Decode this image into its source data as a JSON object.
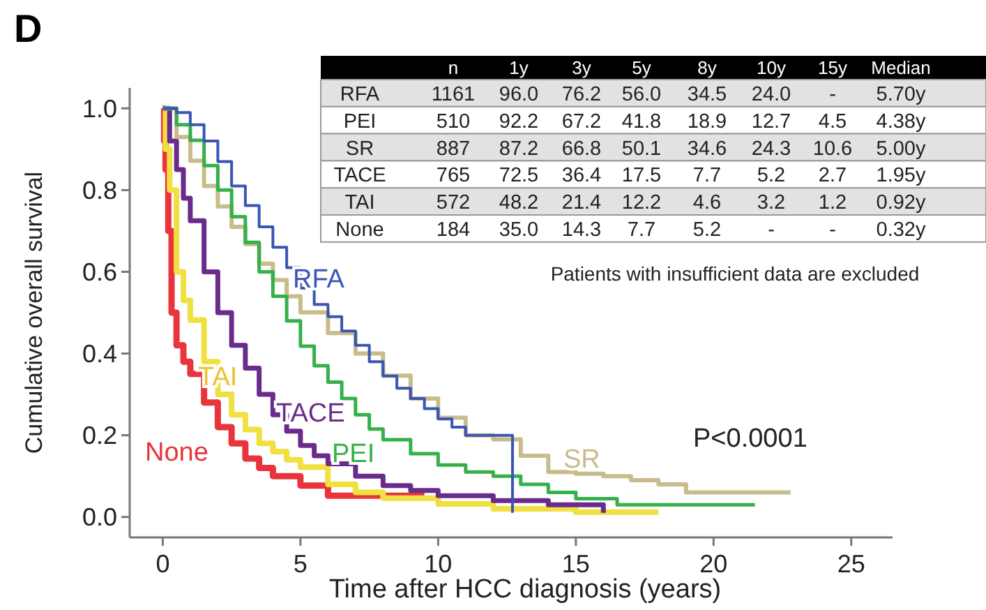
{
  "chart_data": {
    "type": "step",
    "title": "D",
    "xlabel": "Time after HCC diagnosis (years)",
    "ylabel": "Cumulative overall survival",
    "xlim": [
      -1.2,
      26.5
    ],
    "xticks": [
      0,
      5,
      10,
      15,
      20,
      25
    ],
    "ylim": [
      -0.05,
      1.05
    ],
    "yticks": [
      {
        "value": 0,
        "label": "0.0"
      },
      {
        "value": 0.2,
        "label": "0.2"
      },
      {
        "value": 0.4,
        "label": "0.4"
      },
      {
        "value": 0.6,
        "label": "0.6"
      },
      {
        "value": 0.8,
        "label": "0.8"
      },
      {
        "value": 1,
        "label": "1.0"
      }
    ],
    "grid": false,
    "series": [
      {
        "name": "RFA",
        "color": "#3a55b4",
        "x": [
          0,
          0.5,
          1,
          1.5,
          2,
          2.5,
          3,
          3.5,
          4,
          4.5,
          5,
          5.5,
          6,
          6.5,
          7,
          7.5,
          8,
          8.5,
          9,
          9.5,
          10,
          10.5,
          11,
          12.7,
          12.7
        ],
        "values": [
          1,
          0.99,
          0.96,
          0.92,
          0.87,
          0.81,
          0.762,
          0.71,
          0.66,
          0.61,
          0.56,
          0.52,
          0.49,
          0.455,
          0.42,
          0.38,
          0.345,
          0.315,
          0.29,
          0.265,
          0.24,
          0.22,
          0.2,
          0.2,
          0.01
        ]
      },
      {
        "name": "PEI",
        "color": "#35b04a",
        "x": [
          0,
          0.5,
          1,
          1.5,
          2,
          2.5,
          3,
          3.5,
          4,
          4.5,
          5,
          5.5,
          6,
          6.5,
          7,
          7.5,
          8,
          9,
          10,
          11,
          12,
          13,
          14,
          15,
          16.5,
          21.5
        ],
        "values": [
          1,
          0.96,
          0.922,
          0.86,
          0.8,
          0.735,
          0.672,
          0.6,
          0.54,
          0.48,
          0.418,
          0.37,
          0.33,
          0.29,
          0.25,
          0.215,
          0.189,
          0.155,
          0.127,
          0.11,
          0.1,
          0.08,
          0.06,
          0.045,
          0.03,
          0.03
        ]
      },
      {
        "name": "SR",
        "color": "#c8bc8c",
        "x": [
          0,
          0.5,
          1,
          1.5,
          2,
          2.5,
          3,
          3.5,
          4,
          4.5,
          5,
          6,
          7,
          8,
          9,
          10,
          11,
          12,
          13,
          14,
          15,
          16,
          17,
          18,
          19,
          22.8
        ],
        "values": [
          1,
          0.93,
          0.872,
          0.81,
          0.76,
          0.71,
          0.668,
          0.62,
          0.58,
          0.54,
          0.501,
          0.45,
          0.4,
          0.346,
          0.29,
          0.243,
          0.2,
          0.19,
          0.15,
          0.11,
          0.106,
          0.1,
          0.09,
          0.08,
          0.06,
          0.06
        ]
      },
      {
        "name": "TACE",
        "color": "#6a2c8c",
        "x": [
          0,
          0.25,
          0.5,
          0.75,
          1,
          1.5,
          2,
          2.5,
          3,
          3.5,
          4,
          4.5,
          5,
          5.5,
          6,
          7,
          8,
          9,
          10,
          12,
          14,
          16,
          16
        ],
        "values": [
          1,
          0.92,
          0.85,
          0.78,
          0.725,
          0.6,
          0.5,
          0.42,
          0.364,
          0.3,
          0.25,
          0.21,
          0.175,
          0.15,
          0.13,
          0.1,
          0.077,
          0.065,
          0.052,
          0.04,
          0.03,
          0.027,
          0.01
        ]
      },
      {
        "name": "TAI",
        "color": "#f0e040",
        "x": [
          0,
          0.1,
          0.25,
          0.5,
          0.75,
          1,
          1.5,
          2,
          2.5,
          3,
          3.5,
          4,
          4.5,
          5,
          6,
          7,
          8,
          10,
          12,
          15,
          18
        ],
        "values": [
          1,
          0.9,
          0.8,
          0.6,
          0.53,
          0.482,
          0.38,
          0.3,
          0.25,
          0.214,
          0.18,
          0.16,
          0.14,
          0.122,
          0.08,
          0.06,
          0.046,
          0.032,
          0.02,
          0.012,
          0.012
        ]
      },
      {
        "name": "None",
        "color": "#e8343c",
        "x": [
          0,
          0.05,
          0.1,
          0.2,
          0.32,
          0.5,
          0.75,
          1,
          1.5,
          2,
          2.5,
          3,
          3.5,
          4,
          5,
          6,
          9.5
        ],
        "values": [
          1,
          0.92,
          0.85,
          0.7,
          0.5,
          0.42,
          0.38,
          0.35,
          0.28,
          0.22,
          0.18,
          0.143,
          0.12,
          0.1,
          0.077,
          0.052,
          0.052
        ]
      }
    ],
    "annotations": [
      "n 1y 3y 5y 8y 10y 15y Median",
      "RFA 1161 96.0 76.2 56.0 34.5 24.0 - 5.70y",
      "PEI 510 92.2 67.2 41.8 18.9 12.7 4.5 4.38y",
      "SR 887 87.2 66.8 50.1 34.6 24.3 10.6 5.00y",
      "TACE 765 72.5 36.4 17.5 7.7 5.2 2.7 1.95y",
      "TAI 572 48.2 21.4 12.2 4.6 3.2 1.2 0.92y",
      "None 184 35.0 14.3 7.7 5.2 - - 0.32y",
      "Patients with insufficient data are excluded",
      "P<0.0001"
    ]
  }
}
